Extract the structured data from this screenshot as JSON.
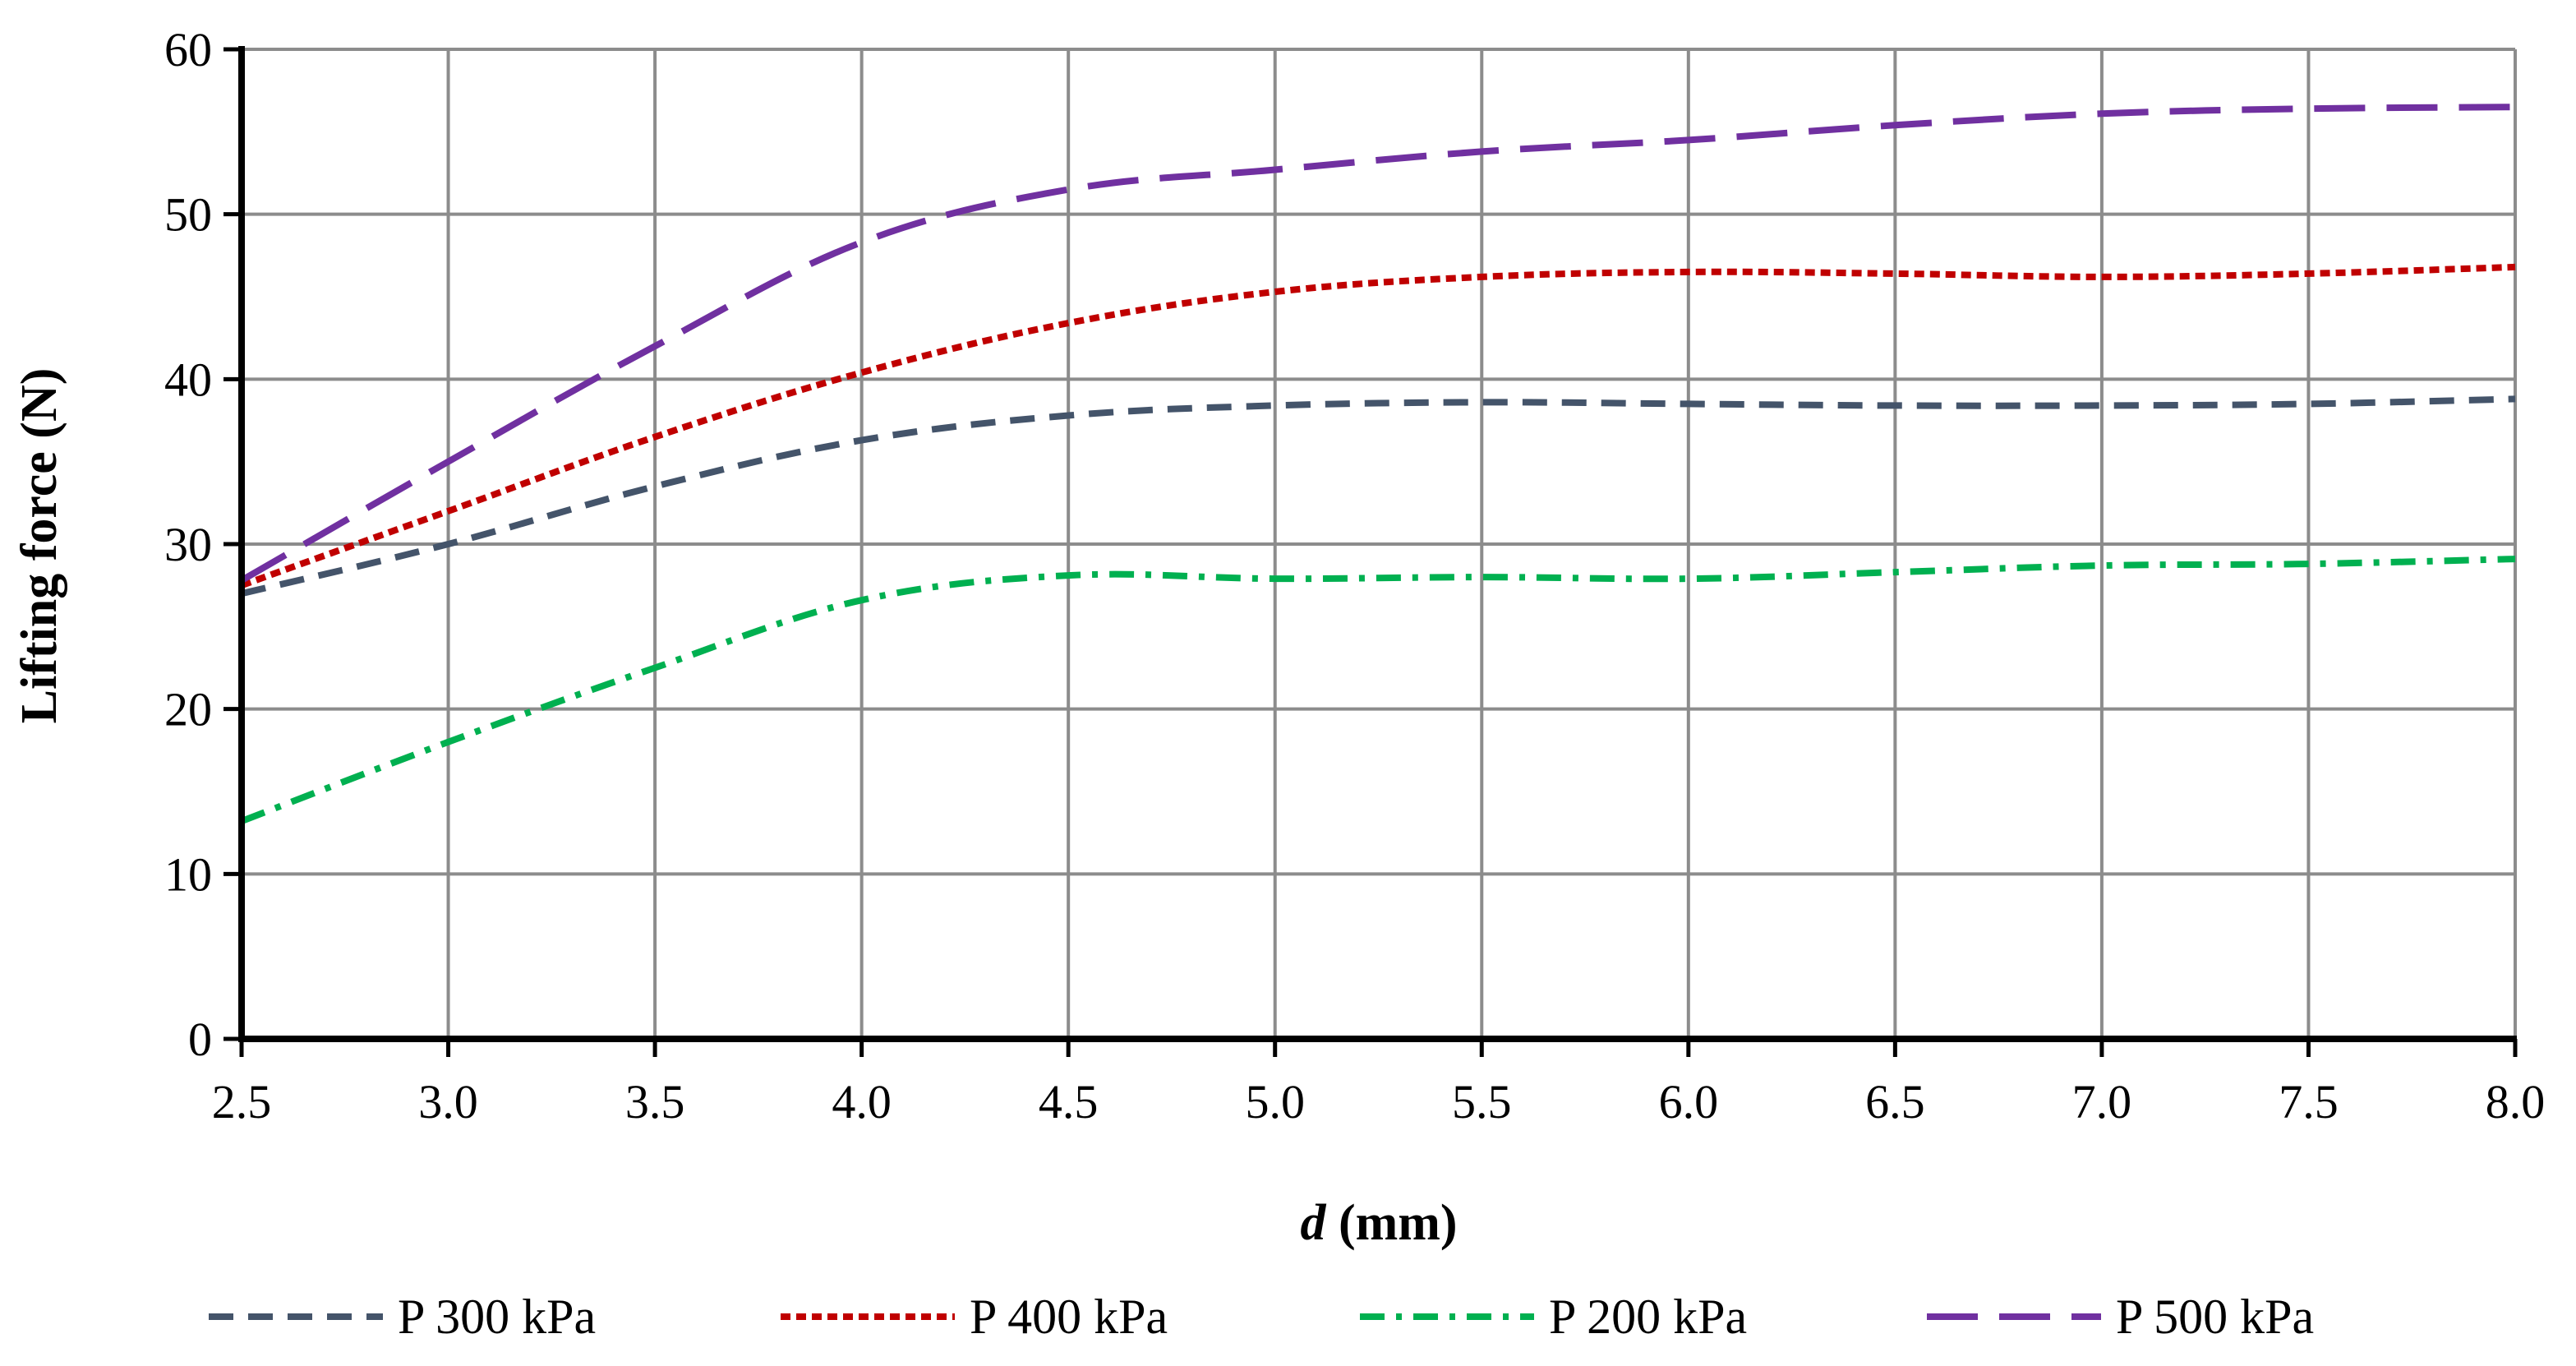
{
  "chart_data": {
    "type": "line",
    "title": "",
    "xlabel_italic": "d",
    "xlabel_rest": " (mm)",
    "ylabel": "Lifting force (N)",
    "xlim": [
      2.5,
      8.0
    ],
    "ylim": [
      0,
      60
    ],
    "grid": true,
    "legend_position": "bottom",
    "xticks": [
      "2.5",
      "3.0",
      "3.5",
      "4.0",
      "4.5",
      "5.0",
      "5.5",
      "6.0",
      "6.5",
      "7.0",
      "7.5",
      "8.0"
    ],
    "yticks": [
      "0",
      "10",
      "20",
      "30",
      "40",
      "50",
      "60"
    ],
    "x": [
      2.5,
      3.0,
      3.5,
      4.0,
      4.5,
      5.0,
      5.5,
      6.0,
      6.5,
      7.0,
      7.5,
      8.0
    ],
    "series": [
      {
        "name": "P 300 kPa",
        "color": "#44546a",
        "dash": "dashed",
        "values": [
          27.0,
          30.0,
          33.5,
          36.3,
          37.8,
          38.4,
          38.6,
          38.5,
          38.4,
          38.4,
          38.5,
          38.8
        ]
      },
      {
        "name": "P 400 kPa",
        "color": "#c00000",
        "dash": "dotted",
        "values": [
          27.5,
          32.0,
          36.5,
          40.4,
          43.4,
          45.3,
          46.2,
          46.5,
          46.4,
          46.2,
          46.4,
          46.8
        ]
      },
      {
        "name": "P 200 kPa",
        "color": "#00b050",
        "dash": "dashdot",
        "values": [
          13.2,
          18.0,
          22.5,
          26.6,
          28.1,
          27.9,
          28.0,
          27.9,
          28.3,
          28.7,
          28.8,
          29.1
        ]
      },
      {
        "name": "P 500 kPa",
        "color": "#7030a0",
        "dash": "longdash",
        "values": [
          27.8,
          35.0,
          42.0,
          48.3,
          51.5,
          52.7,
          53.8,
          54.5,
          55.4,
          56.1,
          56.4,
          56.5
        ]
      }
    ]
  }
}
